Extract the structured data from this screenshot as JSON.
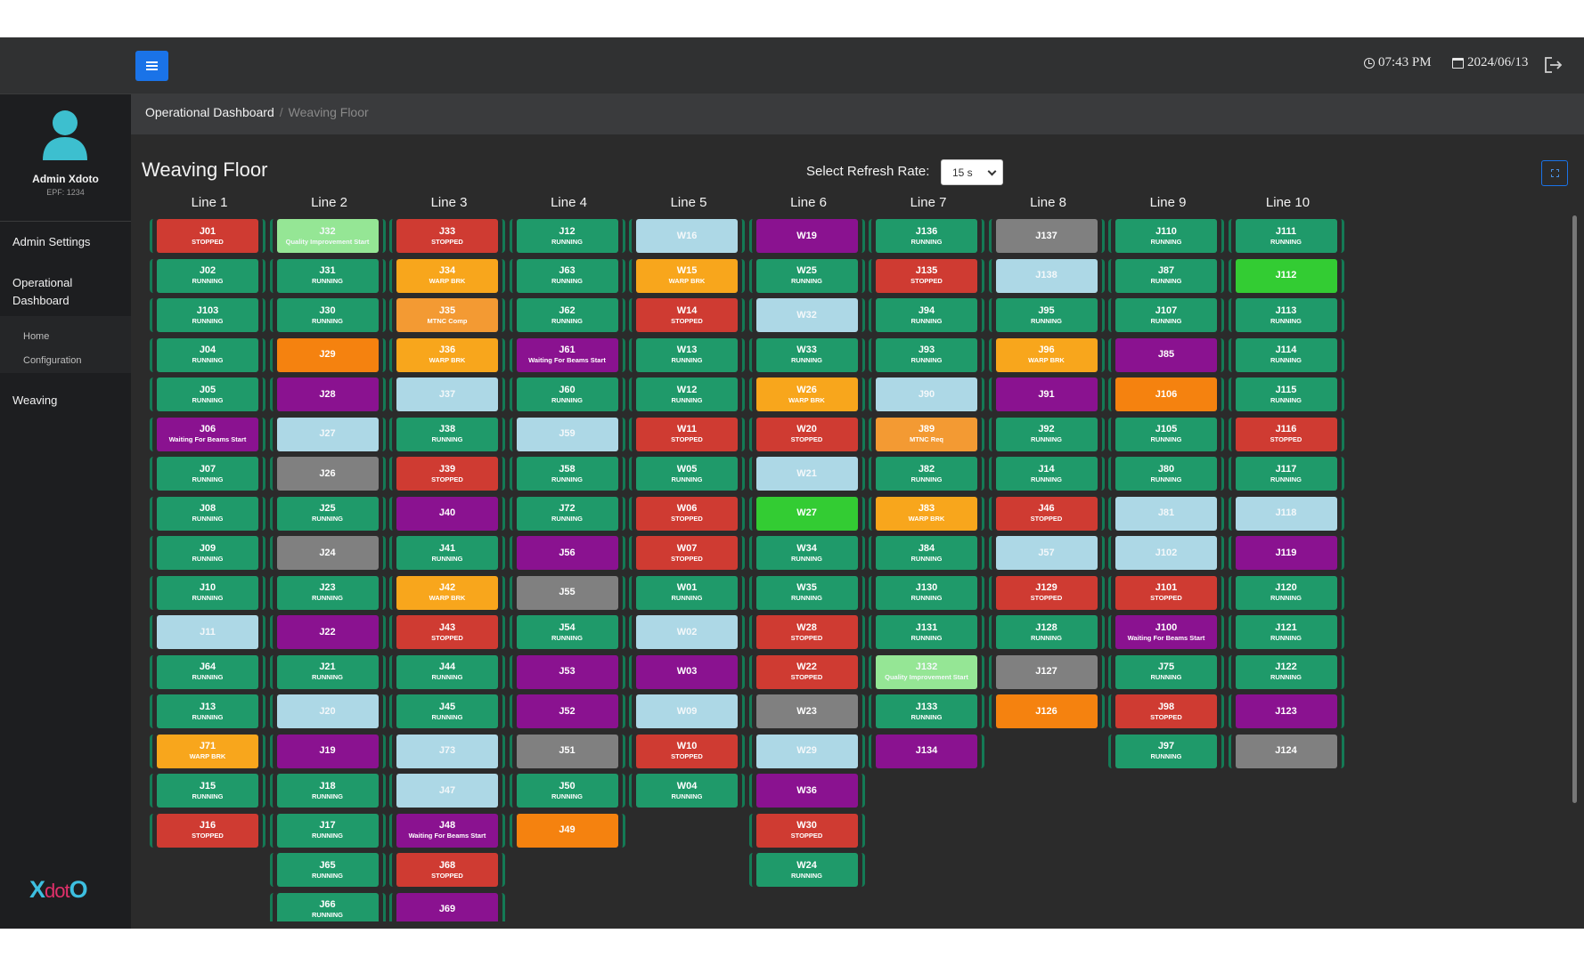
{
  "header": {
    "time": "07:43 PM",
    "date": "2024/06/13"
  },
  "user": {
    "name": "Admin Xdoto",
    "epf": "EPF: 1234"
  },
  "sidebar": {
    "items": [
      {
        "label": "Admin Settings"
      },
      {
        "label": "Operational Dashboard"
      },
      {
        "label": "Weaving"
      }
    ],
    "subitems": [
      {
        "label": "Home"
      },
      {
        "label": "Configuration"
      }
    ],
    "brand": "XdotO"
  },
  "breadcrumb": {
    "root": "Operational Dashboard",
    "separator": "/",
    "current": "Weaving Floor"
  },
  "page": {
    "title": "Weaving Floor",
    "refresh_label": "Select Refresh Rate:",
    "refresh_value": "15 s"
  },
  "status_colors": {
    "RUNNING": "#1f9a6a",
    "STOPPED": "#cf3b32",
    "WARP BRK": "#f8a61c",
    "MTNC Comp": "#f39a33",
    "MTNC Req": "#f39a33",
    "Waiting For Beams Start": "#8a1290",
    "Quality Improvement Start": "#95e695",
    "IDLE_BLUE": "#add8e6",
    "IDLE_PURPLE": "#8a1290",
    "IDLE_GREY": "#808080",
    "IDLE_ORANGE": "#f5820f",
    "IDLE_GREEN": "#33cc33"
  },
  "lines": [
    {
      "name": "Line 1",
      "machines": [
        {
          "id": "J01",
          "status": "STOPPED"
        },
        {
          "id": "J02",
          "status": "RUNNING"
        },
        {
          "id": "J103",
          "status": "RUNNING"
        },
        {
          "id": "J04",
          "status": "RUNNING"
        },
        {
          "id": "J05",
          "status": "RUNNING"
        },
        {
          "id": "J06",
          "status": "Waiting For Beams Start"
        },
        {
          "id": "J07",
          "status": "RUNNING"
        },
        {
          "id": "J08",
          "status": "RUNNING"
        },
        {
          "id": "J09",
          "status": "RUNNING"
        },
        {
          "id": "J10",
          "status": "RUNNING"
        },
        {
          "id": "J11",
          "status": "",
          "color": "IDLE_BLUE"
        },
        {
          "id": "J64",
          "status": "RUNNING"
        },
        {
          "id": "J13",
          "status": "RUNNING"
        },
        {
          "id": "J71",
          "status": "WARP BRK"
        },
        {
          "id": "J15",
          "status": "RUNNING"
        },
        {
          "id": "J16",
          "status": "STOPPED"
        }
      ]
    },
    {
      "name": "Line 2",
      "machines": [
        {
          "id": "J32",
          "status": "Quality Improvement Start"
        },
        {
          "id": "J31",
          "status": "RUNNING"
        },
        {
          "id": "J30",
          "status": "RUNNING"
        },
        {
          "id": "J29",
          "status": "",
          "color": "IDLE_ORANGE"
        },
        {
          "id": "J28",
          "status": "",
          "color": "IDLE_PURPLE"
        },
        {
          "id": "J27",
          "status": "",
          "color": "IDLE_BLUE"
        },
        {
          "id": "J26",
          "status": "",
          "color": "IDLE_GREY"
        },
        {
          "id": "J25",
          "status": "RUNNING"
        },
        {
          "id": "J24",
          "status": "",
          "color": "IDLE_GREY"
        },
        {
          "id": "J23",
          "status": "RUNNING"
        },
        {
          "id": "J22",
          "status": "",
          "color": "IDLE_PURPLE"
        },
        {
          "id": "J21",
          "status": "RUNNING"
        },
        {
          "id": "J20",
          "status": "",
          "color": "IDLE_BLUE"
        },
        {
          "id": "J19",
          "status": "",
          "color": "IDLE_PURPLE"
        },
        {
          "id": "J18",
          "status": "RUNNING"
        },
        {
          "id": "J17",
          "status": "RUNNING"
        },
        {
          "id": "J65",
          "status": "RUNNING"
        },
        {
          "id": "J66",
          "status": "RUNNING"
        }
      ]
    },
    {
      "name": "Line 3",
      "machines": [
        {
          "id": "J33",
          "status": "STOPPED"
        },
        {
          "id": "J34",
          "status": "WARP BRK"
        },
        {
          "id": "J35",
          "status": "MTNC Comp"
        },
        {
          "id": "J36",
          "status": "WARP BRK"
        },
        {
          "id": "J37",
          "status": "",
          "color": "IDLE_BLUE"
        },
        {
          "id": "J38",
          "status": "RUNNING"
        },
        {
          "id": "J39",
          "status": "STOPPED"
        },
        {
          "id": "J40",
          "status": "",
          "color": "IDLE_PURPLE"
        },
        {
          "id": "J41",
          "status": "RUNNING"
        },
        {
          "id": "J42",
          "status": "WARP BRK"
        },
        {
          "id": "J43",
          "status": "STOPPED"
        },
        {
          "id": "J44",
          "status": "RUNNING"
        },
        {
          "id": "J45",
          "status": "RUNNING"
        },
        {
          "id": "J73",
          "status": "",
          "color": "IDLE_BLUE"
        },
        {
          "id": "J47",
          "status": "",
          "color": "IDLE_BLUE"
        },
        {
          "id": "J48",
          "status": "Waiting For Beams Start"
        },
        {
          "id": "J68",
          "status": "STOPPED"
        },
        {
          "id": "J69",
          "status": "",
          "color": "IDLE_PURPLE"
        }
      ]
    },
    {
      "name": "Line 4",
      "machines": [
        {
          "id": "J12",
          "status": "RUNNING"
        },
        {
          "id": "J63",
          "status": "RUNNING"
        },
        {
          "id": "J62",
          "status": "RUNNING"
        },
        {
          "id": "J61",
          "status": "Waiting For Beams Start"
        },
        {
          "id": "J60",
          "status": "RUNNING"
        },
        {
          "id": "J59",
          "status": "",
          "color": "IDLE_BLUE"
        },
        {
          "id": "J58",
          "status": "RUNNING"
        },
        {
          "id": "J72",
          "status": "RUNNING"
        },
        {
          "id": "J56",
          "status": "",
          "color": "IDLE_PURPLE"
        },
        {
          "id": "J55",
          "status": "",
          "color": "IDLE_GREY"
        },
        {
          "id": "J54",
          "status": "RUNNING"
        },
        {
          "id": "J53",
          "status": "",
          "color": "IDLE_PURPLE"
        },
        {
          "id": "J52",
          "status": "",
          "color": "IDLE_PURPLE"
        },
        {
          "id": "J51",
          "status": "",
          "color": "IDLE_GREY"
        },
        {
          "id": "J50",
          "status": "RUNNING"
        },
        {
          "id": "J49",
          "status": "",
          "color": "IDLE_ORANGE"
        }
      ]
    },
    {
      "name": "Line 5",
      "machines": [
        {
          "id": "W16",
          "status": "",
          "color": "IDLE_BLUE"
        },
        {
          "id": "W15",
          "status": "WARP BRK"
        },
        {
          "id": "W14",
          "status": "STOPPED"
        },
        {
          "id": "W13",
          "status": "RUNNING"
        },
        {
          "id": "W12",
          "status": "RUNNING"
        },
        {
          "id": "W11",
          "status": "STOPPED"
        },
        {
          "id": "W05",
          "status": "RUNNING"
        },
        {
          "id": "W06",
          "status": "STOPPED"
        },
        {
          "id": "W07",
          "status": "STOPPED"
        },
        {
          "id": "W01",
          "status": "RUNNING"
        },
        {
          "id": "W02",
          "status": "",
          "color": "IDLE_BLUE"
        },
        {
          "id": "W03",
          "status": "",
          "color": "IDLE_PURPLE"
        },
        {
          "id": "W09",
          "status": "",
          "color": "IDLE_BLUE"
        },
        {
          "id": "W10",
          "status": "STOPPED"
        },
        {
          "id": "W04",
          "status": "RUNNING"
        }
      ]
    },
    {
      "name": "Line 6",
      "machines": [
        {
          "id": "W19",
          "status": "",
          "color": "IDLE_PURPLE"
        },
        {
          "id": "W25",
          "status": "RUNNING"
        },
        {
          "id": "W32",
          "status": "",
          "color": "IDLE_BLUE"
        },
        {
          "id": "W33",
          "status": "RUNNING"
        },
        {
          "id": "W26",
          "status": "WARP BRK"
        },
        {
          "id": "W20",
          "status": "STOPPED"
        },
        {
          "id": "W21",
          "status": "",
          "color": "IDLE_BLUE"
        },
        {
          "id": "W27",
          "status": "",
          "color": "IDLE_GREEN"
        },
        {
          "id": "W34",
          "status": "RUNNING"
        },
        {
          "id": "W35",
          "status": "RUNNING"
        },
        {
          "id": "W28",
          "status": "STOPPED"
        },
        {
          "id": "W22",
          "status": "STOPPED"
        },
        {
          "id": "W23",
          "status": "",
          "color": "IDLE_GREY"
        },
        {
          "id": "W29",
          "status": "",
          "color": "IDLE_BLUE"
        },
        {
          "id": "W36",
          "status": "",
          "color": "IDLE_PURPLE"
        },
        {
          "id": "W30",
          "status": "STOPPED"
        },
        {
          "id": "W24",
          "status": "RUNNING"
        }
      ]
    },
    {
      "name": "Line 7",
      "machines": [
        {
          "id": "J136",
          "status": "RUNNING"
        },
        {
          "id": "J135",
          "status": "STOPPED"
        },
        {
          "id": "J94",
          "status": "RUNNING"
        },
        {
          "id": "J93",
          "status": "RUNNING"
        },
        {
          "id": "J90",
          "status": "",
          "color": "IDLE_BLUE"
        },
        {
          "id": "J89",
          "status": "MTNC Req"
        },
        {
          "id": "J82",
          "status": "RUNNING"
        },
        {
          "id": "J83",
          "status": "WARP BRK"
        },
        {
          "id": "J84",
          "status": "RUNNING"
        },
        {
          "id": "J130",
          "status": "RUNNING"
        },
        {
          "id": "J131",
          "status": "RUNNING"
        },
        {
          "id": "J132",
          "status": "Quality Improvement Start"
        },
        {
          "id": "J133",
          "status": "RUNNING"
        },
        {
          "id": "J134",
          "status": "",
          "color": "IDLE_PURPLE"
        }
      ]
    },
    {
      "name": "Line 8",
      "machines": [
        {
          "id": "J137",
          "status": "",
          "color": "IDLE_GREY"
        },
        {
          "id": "J138",
          "status": "",
          "color": "IDLE_BLUE"
        },
        {
          "id": "J95",
          "status": "RUNNING"
        },
        {
          "id": "J96",
          "status": "WARP BRK"
        },
        {
          "id": "J91",
          "status": "",
          "color": "IDLE_PURPLE"
        },
        {
          "id": "J92",
          "status": "RUNNING"
        },
        {
          "id": "J14",
          "status": "RUNNING"
        },
        {
          "id": "J46",
          "status": "STOPPED"
        },
        {
          "id": "J57",
          "status": "",
          "color": "IDLE_BLUE"
        },
        {
          "id": "J129",
          "status": "STOPPED"
        },
        {
          "id": "J128",
          "status": "RUNNING"
        },
        {
          "id": "J127",
          "status": "",
          "color": "IDLE_GREY"
        },
        {
          "id": "J126",
          "status": "",
          "color": "IDLE_ORANGE"
        }
      ]
    },
    {
      "name": "Line 9",
      "machines": [
        {
          "id": "J110",
          "status": "RUNNING"
        },
        {
          "id": "J87",
          "status": "RUNNING"
        },
        {
          "id": "J107",
          "status": "RUNNING"
        },
        {
          "id": "J85",
          "status": "",
          "color": "IDLE_PURPLE"
        },
        {
          "id": "J106",
          "status": "",
          "color": "IDLE_ORANGE"
        },
        {
          "id": "J105",
          "status": "RUNNING"
        },
        {
          "id": "J80",
          "status": "RUNNING"
        },
        {
          "id": "J81",
          "status": "",
          "color": "IDLE_BLUE"
        },
        {
          "id": "J102",
          "status": "",
          "color": "IDLE_BLUE"
        },
        {
          "id": "J101",
          "status": "STOPPED"
        },
        {
          "id": "J100",
          "status": "Waiting For Beams Start"
        },
        {
          "id": "J75",
          "status": "RUNNING"
        },
        {
          "id": "J98",
          "status": "STOPPED"
        },
        {
          "id": "J97",
          "status": "RUNNING"
        }
      ]
    },
    {
      "name": "Line 10",
      "machines": [
        {
          "id": "J111",
          "status": "RUNNING"
        },
        {
          "id": "J112",
          "status": "",
          "color": "IDLE_GREEN"
        },
        {
          "id": "J113",
          "status": "RUNNING"
        },
        {
          "id": "J114",
          "status": "RUNNING"
        },
        {
          "id": "J115",
          "status": "RUNNING"
        },
        {
          "id": "J116",
          "status": "STOPPED"
        },
        {
          "id": "J117",
          "status": "RUNNING"
        },
        {
          "id": "J118",
          "status": "",
          "color": "IDLE_BLUE"
        },
        {
          "id": "J119",
          "status": "",
          "color": "IDLE_PURPLE"
        },
        {
          "id": "J120",
          "status": "RUNNING"
        },
        {
          "id": "J121",
          "status": "RUNNING"
        },
        {
          "id": "J122",
          "status": "RUNNING"
        },
        {
          "id": "J123",
          "status": "",
          "color": "IDLE_PURPLE"
        },
        {
          "id": "J124",
          "status": "",
          "color": "IDLE_GREY"
        }
      ]
    }
  ]
}
